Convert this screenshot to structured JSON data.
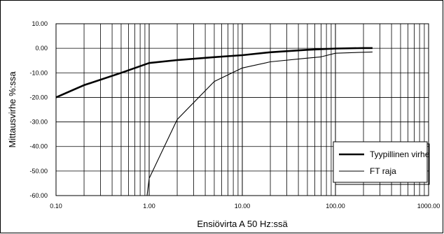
{
  "chart_data": {
    "type": "line",
    "xscale": "log",
    "xlim": [
      0.1,
      1000
    ],
    "ylim": [
      -60,
      10
    ],
    "xlabel": "Ensiövirta A 50 Hz:ssä",
    "ylabel": "Mittausvirhe %:ssa",
    "x_tick_labels": [
      "0.10",
      "1.00",
      "10.00",
      "100.00",
      "1000.00"
    ],
    "y_tick_labels": [
      "10.00",
      "0.00",
      "-10.00",
      "-20.00",
      "-30.00",
      "-40.00",
      "-50.00",
      "-60.00"
    ],
    "grid": true,
    "legend_position": "bottom-right",
    "series": [
      {
        "name": "Tyypillinen virhe",
        "color": "#000000",
        "style": "thick",
        "x": [
          0.1,
          0.2,
          0.5,
          1,
          2,
          5,
          10,
          20,
          50,
          100,
          200,
          250
        ],
        "y": [
          -20,
          -15,
          -10,
          -6,
          -4.8,
          -3.6,
          -2.8,
          -1.6,
          -0.6,
          -0.1,
          0.1,
          0.1
        ]
      },
      {
        "name": "FT raja",
        "color": "#000000",
        "style": "thin",
        "x": [
          0.95,
          1,
          2,
          5,
          10,
          20,
          50,
          70,
          100,
          200,
          250
        ],
        "y": [
          -60,
          -53,
          -29,
          -13.5,
          -8,
          -5.5,
          -4,
          -3.5,
          -2,
          -1.6,
          -1.5
        ]
      }
    ]
  }
}
